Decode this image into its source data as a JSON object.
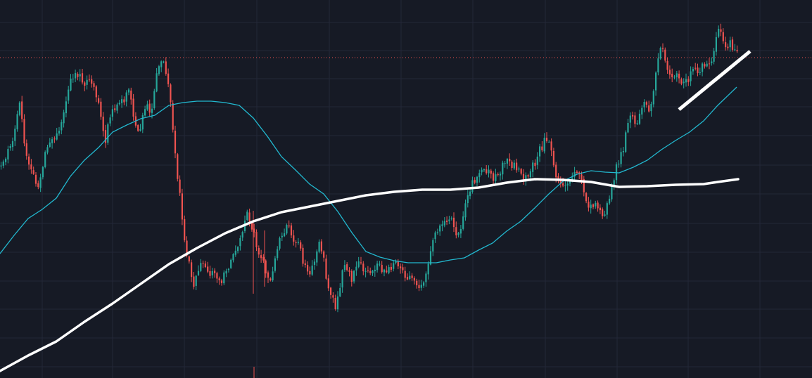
{
  "colors": {
    "background": "#161a25",
    "grid": "#232838",
    "bull": "#26a69a",
    "bear": "#ef5350",
    "ma_fast": "#22b8cf",
    "ma_slow": "#ffffff",
    "price_line": "#ef5350",
    "trendline": "#ffffff"
  },
  "chart_data": {
    "type": "candlestick",
    "title": "",
    "xlabel": "",
    "ylabel": "",
    "grid": true,
    "ylim": [
      0,
      538
    ],
    "current_price_level": 456,
    "anchors": [
      [
        0,
        300
      ],
      [
        8,
        310
      ],
      [
        20,
        345
      ],
      [
        28,
        395
      ],
      [
        38,
        310
      ],
      [
        45,
        290
      ],
      [
        55,
        270
      ],
      [
        65,
        320
      ],
      [
        75,
        335
      ],
      [
        85,
        360
      ],
      [
        95,
        395
      ],
      [
        100,
        425
      ],
      [
        108,
        435
      ],
      [
        118,
        420
      ],
      [
        128,
        430
      ],
      [
        140,
        395
      ],
      [
        150,
        340
      ],
      [
        160,
        385
      ],
      [
        172,
        390
      ],
      [
        185,
        410
      ],
      [
        195,
        340
      ],
      [
        205,
        385
      ],
      [
        215,
        380
      ],
      [
        228,
        460
      ],
      [
        240,
        420
      ],
      [
        250,
        305
      ],
      [
        265,
        175
      ],
      [
        275,
        135
      ],
      [
        285,
        165
      ],
      [
        300,
        150
      ],
      [
        315,
        135
      ],
      [
        325,
        160
      ],
      [
        340,
        185
      ],
      [
        350,
        235
      ],
      [
        362,
        200
      ],
      [
        375,
        160
      ],
      [
        385,
        140
      ],
      [
        398,
        200
      ],
      [
        410,
        215
      ],
      [
        425,
        185
      ],
      [
        440,
        140
      ],
      [
        455,
        195
      ],
      [
        465,
        140
      ],
      [
        478,
        100
      ],
      [
        490,
        165
      ],
      [
        500,
        140
      ],
      [
        510,
        170
      ],
      [
        520,
        145
      ],
      [
        535,
        160
      ],
      [
        545,
        150
      ],
      [
        560,
        165
      ],
      [
        575,
        145
      ],
      [
        585,
        140
      ],
      [
        597,
        120
      ],
      [
        605,
        150
      ],
      [
        615,
        200
      ],
      [
        630,
        215
      ],
      [
        640,
        230
      ],
      [
        648,
        200
      ],
      [
        655,
        210
      ],
      [
        665,
        265
      ],
      [
        675,
        280
      ],
      [
        690,
        295
      ],
      [
        705,
        285
      ],
      [
        720,
        310
      ],
      [
        735,
        300
      ],
      [
        745,
        285
      ],
      [
        760,
        305
      ],
      [
        770,
        330
      ],
      [
        778,
        345
      ],
      [
        788,
        295
      ],
      [
        800,
        270
      ],
      [
        815,
        290
      ],
      [
        825,
        295
      ],
      [
        835,
        240
      ],
      [
        845,
        250
      ],
      [
        855,
        235
      ],
      [
        865,
        245
      ],
      [
        875,
        300
      ],
      [
        885,
        320
      ],
      [
        895,
        375
      ],
      [
        905,
        365
      ],
      [
        915,
        390
      ],
      [
        925,
        380
      ],
      [
        932,
        440
      ],
      [
        940,
        470
      ],
      [
        950,
        440
      ],
      [
        960,
        430
      ],
      [
        975,
        420
      ],
      [
        985,
        435
      ],
      [
        1000,
        445
      ],
      [
        1010,
        440
      ],
      [
        1015,
        475
      ],
      [
        1022,
        500
      ],
      [
        1030,
        470
      ],
      [
        1040,
        475
      ],
      [
        1048,
        460
      ]
    ],
    "moving_averages": [
      {
        "name": "",
        "color_key": "ma_fast",
        "points": [
          [
            0,
            177
          ],
          [
            20,
            203
          ],
          [
            40,
            227
          ],
          [
            60,
            240
          ],
          [
            80,
            256
          ],
          [
            100,
            287
          ],
          [
            120,
            310
          ],
          [
            140,
            328
          ],
          [
            160,
            350
          ],
          [
            180,
            360
          ],
          [
            200,
            369
          ],
          [
            220,
            374
          ],
          [
            240,
            388
          ],
          [
            260,
            392
          ],
          [
            280,
            394
          ],
          [
            300,
            394
          ],
          [
            320,
            392
          ],
          [
            340,
            388
          ],
          [
            360,
            370
          ],
          [
            380,
            344
          ],
          [
            400,
            315
          ],
          [
            420,
            296
          ],
          [
            440,
            276
          ],
          [
            460,
            262
          ],
          [
            480,
            237
          ],
          [
            500,
            207
          ],
          [
            520,
            180
          ],
          [
            540,
            172
          ],
          [
            560,
            167
          ],
          [
            580,
            164
          ],
          [
            600,
            164
          ],
          [
            620,
            164
          ],
          [
            640,
            168
          ],
          [
            660,
            171
          ],
          [
            680,
            182
          ],
          [
            700,
            192
          ],
          [
            720,
            209
          ],
          [
            740,
            223
          ],
          [
            760,
            242
          ],
          [
            780,
            262
          ],
          [
            800,
            280
          ],
          [
            820,
            290
          ],
          [
            840,
            295
          ],
          [
            860,
            293
          ],
          [
            880,
            292
          ],
          [
            900,
            300
          ],
          [
            920,
            310
          ],
          [
            940,
            325
          ],
          [
            960,
            338
          ],
          [
            980,
            350
          ],
          [
            1000,
            366
          ],
          [
            1020,
            388
          ],
          [
            1047,
            414
          ]
        ]
      },
      {
        "name": "",
        "color_key": "ma_slow",
        "points": [
          [
            0,
            10
          ],
          [
            40,
            32
          ],
          [
            80,
            52
          ],
          [
            120,
            80
          ],
          [
            160,
            106
          ],
          [
            200,
            134
          ],
          [
            240,
            162
          ],
          [
            280,
            185
          ],
          [
            320,
            206
          ],
          [
            360,
            223
          ],
          [
            400,
            236
          ],
          [
            440,
            244
          ],
          [
            480,
            252
          ],
          [
            520,
            260
          ],
          [
            560,
            265
          ],
          [
            600,
            268
          ],
          [
            640,
            268
          ],
          [
            680,
            271
          ],
          [
            720,
            278
          ],
          [
            760,
            283
          ],
          [
            800,
            282
          ],
          [
            840,
            279
          ],
          [
            880,
            272
          ],
          [
            920,
            273
          ],
          [
            960,
            275
          ],
          [
            1000,
            276
          ],
          [
            1020,
            279
          ],
          [
            1049,
            283
          ]
        ]
      }
    ],
    "trendline": {
      "from": [
        965,
        382
      ],
      "to": [
        1066,
        465
      ]
    }
  }
}
